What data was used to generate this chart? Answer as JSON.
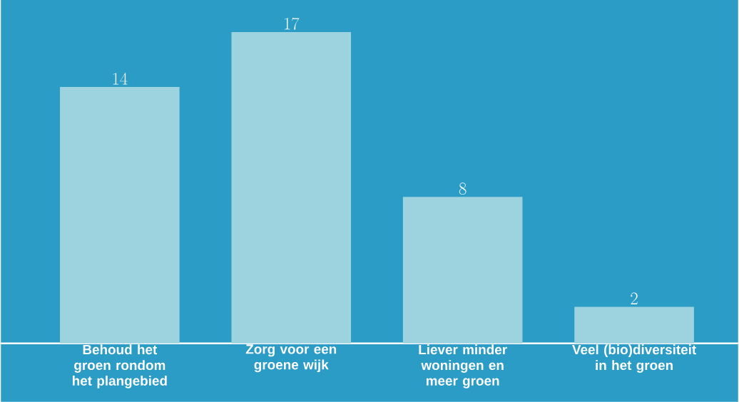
{
  "chart_data": {
    "type": "bar",
    "categories": [
      "Behoud het groen rondom het plangebied",
      "Zorg voor een groene wijk",
      "Liever minder woningen en meer groen",
      "Veel (bio)diversiteit in het groen"
    ],
    "values": [
      14,
      17,
      8,
      2
    ],
    "color": "#9dd2df",
    "data_labels": true
  }
}
